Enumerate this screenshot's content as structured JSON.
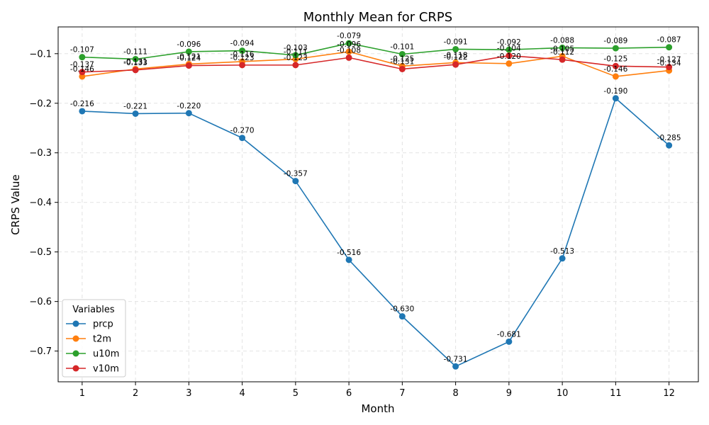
{
  "chart_data": {
    "type": "line",
    "title": "Monthly Mean for CRPS",
    "xlabel": "Month",
    "ylabel": "CRPS Value",
    "x": [
      1,
      2,
      3,
      4,
      5,
      6,
      7,
      8,
      9,
      10,
      11,
      12
    ],
    "xlim": [
      0.55,
      12.55
    ],
    "ylim": [
      -0.762,
      -0.046
    ],
    "yticks": [
      -0.7,
      -0.6,
      -0.5,
      -0.4,
      -0.3,
      -0.2,
      -0.1
    ],
    "ytick_labels": [
      "−0.7",
      "−0.6",
      "−0.5",
      "−0.4",
      "−0.3",
      "−0.2",
      "−0.1"
    ],
    "grid": true,
    "legend": {
      "title": "Variables",
      "position": "lower-left"
    },
    "series": [
      {
        "name": "prcp",
        "color": "#1f77b4",
        "values": [
          -0.216,
          -0.221,
          -0.22,
          -0.27,
          -0.357,
          -0.516,
          -0.63,
          -0.731,
          -0.681,
          -0.513,
          -0.19,
          -0.285
        ],
        "labels": [
          "-0.216",
          "-0.221",
          "-0.220",
          "-0.270",
          "-0.357",
          "-0.516",
          "-0.630",
          "-0.731",
          "-0.681",
          "-0.513",
          "-0.190",
          "-0.285"
        ]
      },
      {
        "name": "t2m",
        "color": "#ff7f0e",
        "values": [
          -0.146,
          -0.131,
          -0.121,
          -0.116,
          -0.111,
          -0.096,
          -0.125,
          -0.118,
          -0.12,
          -0.105,
          -0.146,
          -0.134
        ],
        "labels": [
          "-0.146",
          "-0.131",
          "-0.121",
          "-0.116",
          "-0.111",
          "-0.096",
          "-0.125",
          "-0.118",
          "-0.120",
          "-0.105",
          "-0.146",
          "-0.134"
        ]
      },
      {
        "name": "u10m",
        "color": "#2ca02c",
        "values": [
          -0.107,
          -0.111,
          -0.096,
          -0.094,
          -0.103,
          -0.079,
          -0.101,
          -0.091,
          -0.092,
          -0.088,
          -0.089,
          -0.087
        ],
        "labels": [
          "-0.107",
          "-0.111",
          "-0.096",
          "-0.094",
          "-0.103",
          "-0.079",
          "-0.101",
          "-0.091",
          "-0.092",
          "-0.088",
          "-0.089",
          "-0.087"
        ]
      },
      {
        "name": "v10m",
        "color": "#d62728",
        "values": [
          -0.137,
          -0.133,
          -0.124,
          -0.123,
          -0.123,
          -0.108,
          -0.131,
          -0.122,
          -0.104,
          -0.112,
          -0.125,
          -0.127
        ],
        "labels": [
          "-0.137",
          "-0.133",
          "-0.124",
          "-0.123",
          "-0.123",
          "-0.108",
          "-0.131",
          "-0.122",
          "-0.104",
          "-0.112",
          "-0.125",
          "-0.127"
        ]
      }
    ]
  }
}
